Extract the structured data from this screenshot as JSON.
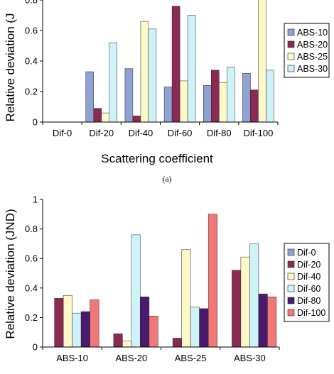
{
  "caption_a": "(a)",
  "chart_data": [
    {
      "type": "bar",
      "categories": [
        "Dif-0",
        "Dif-20",
        "Dif-40",
        "Dif-60",
        "Dif-80",
        "Dif-100"
      ],
      "series": [
        {
          "name": "ABS-10",
          "color": "#8fa2d4",
          "values": [
            0,
            0.33,
            0.35,
            0.23,
            0.24,
            0.32
          ]
        },
        {
          "name": "ABS-20",
          "color": "#8b2a55",
          "values": [
            0,
            0.09,
            0.04,
            0.76,
            0.34,
            0.21
          ]
        },
        {
          "name": "ABS-25",
          "color": "#fdf8c8",
          "values": [
            0,
            0.06,
            0.66,
            0.27,
            0.26,
            0.9
          ]
        },
        {
          "name": "ABS-30",
          "color": "#cdf3f8",
          "values": [
            0,
            0.52,
            0.61,
            0.7,
            0.36,
            0.34
          ]
        }
      ],
      "xlabel": "Scattering coefficient",
      "ylabel": "Relative deviation (J",
      "ylim": [
        0,
        0.8
      ],
      "yticks": [
        "0",
        "0.2",
        "0.4",
        "0.6",
        "0.8"
      ],
      "legend": "right"
    },
    {
      "type": "bar",
      "categories": [
        "ABS-10",
        "ABS-20",
        "ABS-25",
        "ABS-30"
      ],
      "series": [
        {
          "name": "Dif-0",
          "color": "#8fa2d4",
          "values": [
            0,
            0,
            0,
            0
          ]
        },
        {
          "name": "Dif-20",
          "color": "#8b2a55",
          "values": [
            0.33,
            0.09,
            0.06,
            0.52
          ]
        },
        {
          "name": "Dif-40",
          "color": "#fdf8c8",
          "values": [
            0.35,
            0.04,
            0.66,
            0.61
          ]
        },
        {
          "name": "Dif-60",
          "color": "#cdf3f8",
          "values": [
            0.23,
            0.76,
            0.27,
            0.7
          ]
        },
        {
          "name": "Dif-80",
          "color": "#4a1a6e",
          "values": [
            0.24,
            0.34,
            0.26,
            0.36
          ]
        },
        {
          "name": "Dif-100",
          "color": "#f07878",
          "values": [
            0.32,
            0.21,
            0.9,
            0.34
          ]
        }
      ],
      "xlabel": "",
      "ylabel": "Relative deviation (JND)",
      "ylim": [
        0,
        1
      ],
      "yticks": [
        "0",
        "0.2",
        "0.4",
        "0.6",
        "0.8",
        "1"
      ],
      "legend": "right"
    }
  ]
}
